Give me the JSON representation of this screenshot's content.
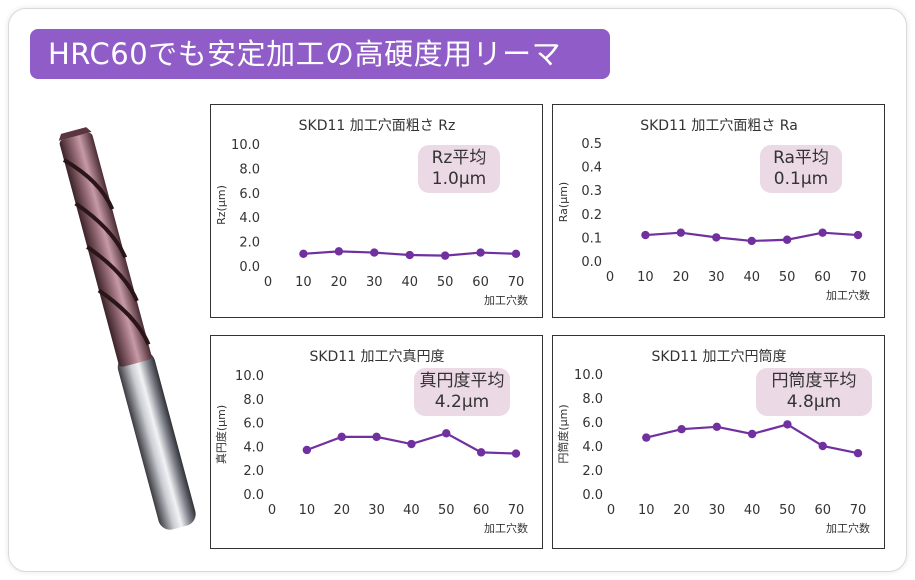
{
  "banner": {
    "title": "HRC60でも安定加工の高硬度用リーマ"
  },
  "colors": {
    "banner": "#8f5cc8",
    "series": "#7030a0",
    "badge": "#ecd9e6"
  },
  "tool_image": {
    "icon": "reamer-drill-icon"
  },
  "chart_data": [
    {
      "type": "line",
      "title": "SKD11 加工穴面粗さ Rz",
      "xlabel": "加工穴数",
      "ylabel": "Rz(μm)",
      "x": [
        0,
        10,
        20,
        30,
        40,
        50,
        60,
        70
      ],
      "x_ticks": [
        "0",
        "10",
        "20",
        "30",
        "40",
        "50",
        "60",
        "70"
      ],
      "y_ticks": [
        "0.0",
        "2.0",
        "4.0",
        "6.0",
        "8.0",
        "10.0"
      ],
      "ylim": [
        0,
        10
      ],
      "xlim": [
        0,
        70
      ],
      "series": [
        {
          "name": "Rz",
          "x": [
            10,
            20,
            30,
            40,
            50,
            60,
            70
          ],
          "values": [
            1.0,
            1.2,
            1.1,
            0.9,
            0.85,
            1.1,
            1.0
          ]
        }
      ],
      "badge": {
        "label": "Rz平均",
        "value": "1.0μm"
      }
    },
    {
      "type": "line",
      "title": "SKD11 加工穴面粗さ Ra",
      "xlabel": "加工穴数",
      "ylabel": "Ra(μm)",
      "x": [
        0,
        10,
        20,
        30,
        40,
        50,
        60,
        70
      ],
      "x_ticks": [
        "0",
        "10",
        "20",
        "30",
        "40",
        "50",
        "60",
        "70"
      ],
      "y_ticks": [
        "0.0",
        "0.1",
        "0.2",
        "0.3",
        "0.4",
        "0.5"
      ],
      "ylim": [
        0,
        0.5
      ],
      "xlim": [
        0,
        70
      ],
      "series": [
        {
          "name": "Ra",
          "x": [
            10,
            20,
            30,
            40,
            50,
            60,
            70
          ],
          "values": [
            0.11,
            0.12,
            0.1,
            0.085,
            0.09,
            0.12,
            0.11
          ]
        }
      ],
      "badge": {
        "label": "Ra平均",
        "value": "0.1μm"
      }
    },
    {
      "type": "line",
      "title": "SKD11 加工穴真円度",
      "xlabel": "加工穴数",
      "ylabel": "真円度(μm)",
      "x": [
        0,
        10,
        20,
        30,
        40,
        50,
        60,
        70
      ],
      "x_ticks": [
        "0",
        "10",
        "20",
        "30",
        "40",
        "50",
        "60",
        "70"
      ],
      "y_ticks": [
        "0.0",
        "2.0",
        "4.0",
        "6.0",
        "8.0",
        "10.0"
      ],
      "ylim": [
        0,
        10
      ],
      "xlim": [
        0,
        70
      ],
      "series": [
        {
          "name": "真円度",
          "x": [
            10,
            20,
            30,
            40,
            50,
            60,
            70
          ],
          "values": [
            3.7,
            4.8,
            4.8,
            4.2,
            5.1,
            3.5,
            3.4
          ]
        }
      ],
      "badge": {
        "label": "真円度平均",
        "value": "4.2μm"
      }
    },
    {
      "type": "line",
      "title": "SKD11 加工穴円筒度",
      "xlabel": "加工穴数",
      "ylabel": "円筒度(μm)",
      "x": [
        0,
        10,
        20,
        30,
        40,
        50,
        60,
        70
      ],
      "x_ticks": [
        "0",
        "10",
        "20",
        "30",
        "40",
        "50",
        "60",
        "70"
      ],
      "y_ticks": [
        "0.0",
        "2.0",
        "4.0",
        "6.0",
        "8.0",
        "10.0"
      ],
      "ylim": [
        0,
        10
      ],
      "xlim": [
        0,
        70
      ],
      "series": [
        {
          "name": "円筒度",
          "x": [
            10,
            20,
            30,
            40,
            50,
            60,
            70
          ],
          "values": [
            4.7,
            5.4,
            5.6,
            5.0,
            5.8,
            4.0,
            3.4
          ]
        }
      ],
      "badge": {
        "label": "円筒度平均",
        "value": "4.8μm"
      }
    }
  ]
}
